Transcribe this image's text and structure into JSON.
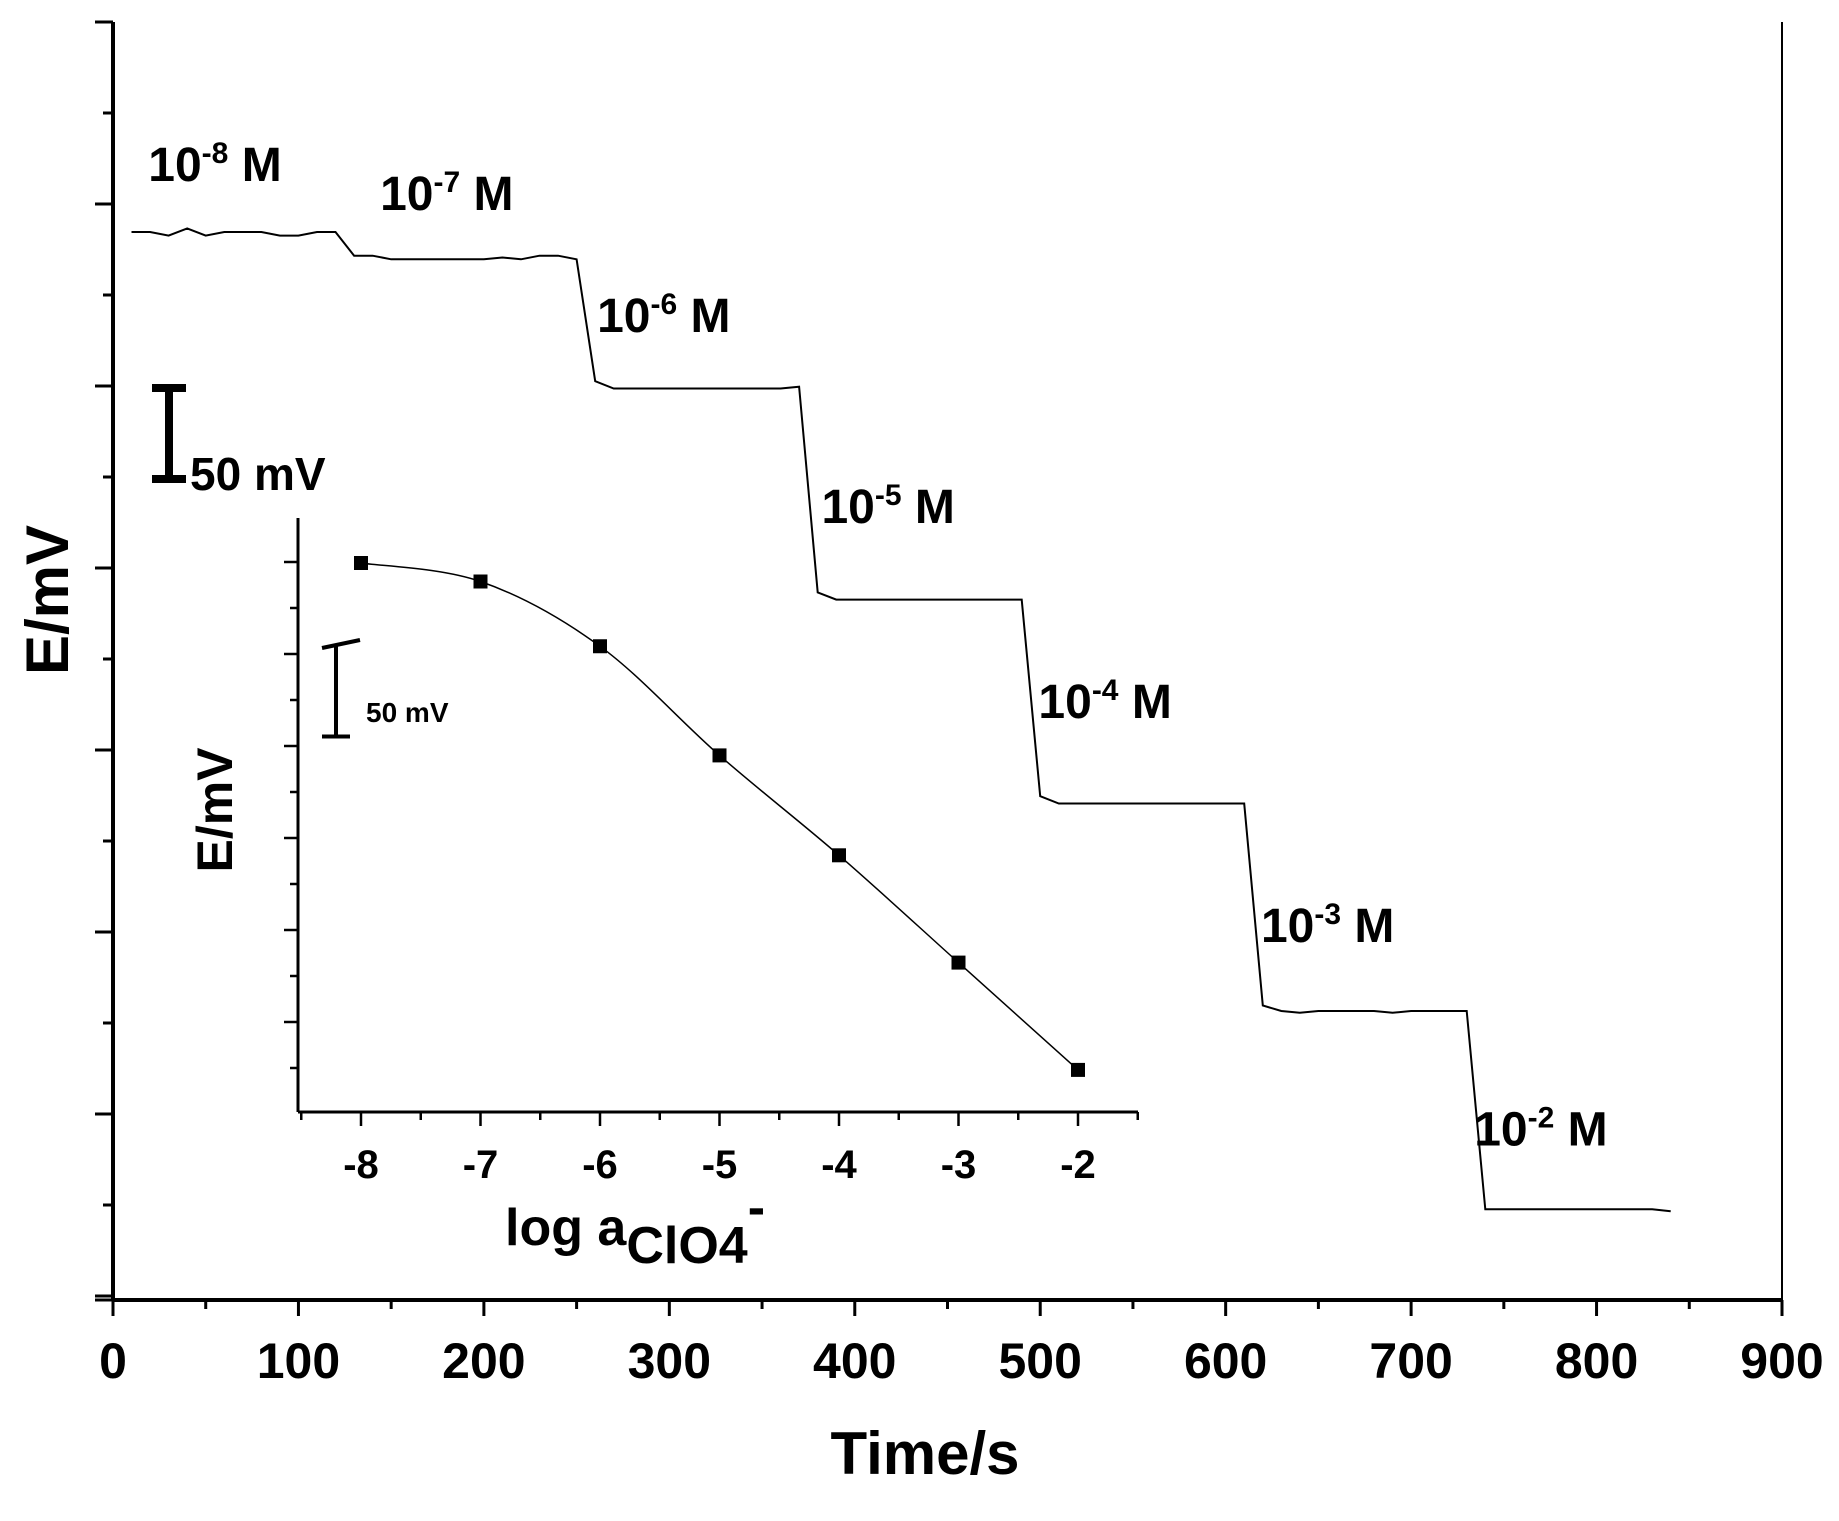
{
  "chart_data": [
    {
      "id": "main",
      "type": "line",
      "title": "",
      "xlabel": "Time/s",
      "ylabel": "E/mV",
      "xlim": [
        0,
        900
      ],
      "x_ticks": [
        "0",
        "100",
        "200",
        "300",
        "400",
        "500",
        "600",
        "700",
        "800",
        "900"
      ],
      "y_tick_labels": "none",
      "y_range_mV": [
        -590,
        80
      ],
      "scale_bar": {
        "label": "50 mV",
        "value_mV": 50
      },
      "grid": false,
      "series": [
        {
          "x": [
            10,
            20,
            30,
            40,
            50,
            60,
            70,
            80,
            90,
            100,
            110,
            120,
            130,
            140,
            150,
            160,
            170,
            180,
            190,
            200,
            210,
            220,
            230,
            240,
            250,
            260,
            270,
            280,
            290,
            300,
            310,
            320,
            330,
            340,
            350,
            360,
            370,
            380,
            390,
            400,
            410,
            420,
            430,
            440,
            450,
            460,
            470,
            480,
            490,
            500,
            510,
            520,
            530,
            540,
            550,
            560,
            570,
            580,
            590,
            600,
            610,
            620,
            630,
            640,
            650,
            660,
            670,
            680,
            690,
            700,
            710,
            720,
            730,
            740,
            750,
            760,
            770,
            780,
            790,
            800,
            810,
            820,
            830,
            840
          ],
          "y": [
            0,
            0,
            -2,
            2,
            -2,
            0,
            0,
            0,
            -2,
            -2,
            0,
            0,
            -13,
            -13,
            -15,
            -15,
            -15,
            -15,
            -15,
            -15,
            -14,
            -15,
            -13,
            -13,
            -15,
            -82,
            -86,
            -86,
            -86,
            -86,
            -86,
            -86,
            -86,
            -86,
            -86,
            -86,
            -85,
            -198,
            -202,
            -202,
            -202,
            -202,
            -202,
            -202,
            -202,
            -202,
            -202,
            -202,
            -202,
            -310,
            -314,
            -314,
            -314,
            -314,
            -314,
            -314,
            -314,
            -314,
            -314,
            -314,
            -314,
            -425,
            -428,
            -429,
            -428,
            -428,
            -428,
            -428,
            -429,
            -428,
            -428,
            -428,
            -428,
            -537,
            -537,
            -537,
            -537,
            -537,
            -537,
            -537,
            -537,
            -537,
            -537,
            -538
          ]
        }
      ],
      "annotations": [
        {
          "base": "10",
          "exp": "-8",
          "unit": "M",
          "x": 55,
          "y": 28
        },
        {
          "base": "10",
          "exp": "-7",
          "unit": "M",
          "x": 180,
          "y": 12
        },
        {
          "base": "10",
          "exp": "-6",
          "unit": "M",
          "x": 297,
          "y": -55
        },
        {
          "base": "10",
          "exp": "-5",
          "unit": "M",
          "x": 418,
          "y": -160
        },
        {
          "base": "10",
          "exp": "-4",
          "unit": "M",
          "x": 535,
          "y": -267
        },
        {
          "base": "10",
          "exp": "-3",
          "unit": "M",
          "x": 655,
          "y": -390
        },
        {
          "base": "10",
          "exp": "-2",
          "unit": "M",
          "x": 770,
          "y": -502
        }
      ]
    },
    {
      "id": "inset",
      "type": "line",
      "title": "",
      "xlabel_main": "log a",
      "xlabel_sub": "ClO4",
      "xlabel_sup": "-",
      "ylabel": "E/mV",
      "xlim": [
        -8.5,
        -1.5
      ],
      "x_ticks": [
        "-8",
        "-7",
        "-6",
        "-5",
        "-4",
        "-3",
        "-2"
      ],
      "y_tick_labels": "none",
      "y_range_mV": [
        -560,
        0
      ],
      "scale_bar": {
        "label": "50 mV",
        "value_mV": 50
      },
      "grid": false,
      "series": [
        {
          "x": [
            -8,
            -7,
            -6,
            -5,
            -4,
            -3,
            -2
          ],
          "y": [
            0,
            -10,
            -45,
            -104,
            -158,
            -216,
            -274
          ],
          "marker": "square"
        }
      ]
    }
  ]
}
